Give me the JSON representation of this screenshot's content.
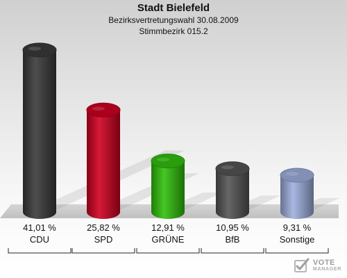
{
  "header": {
    "title": "Stadt Bielefeld",
    "subtitle": "Bezirksvertretungswahl 30.08.2009",
    "precinct": "Stimmbezirk 015.2"
  },
  "chart_data": {
    "type": "bar",
    "categories": [
      "CDU",
      "SPD",
      "GRÜNE",
      "BfB",
      "Sonstige"
    ],
    "values": [
      41.01,
      25.82,
      12.91,
      10.95,
      9.31
    ],
    "value_labels": [
      "41,01 %",
      "25,82 %",
      "12,91 %",
      "10,95 %",
      "9,31 %"
    ],
    "colors": [
      "#3a3a3a",
      "#d10021",
      "#31c10c",
      "#555555",
      "#9fb0df"
    ],
    "title": "Stadt Bielefeld",
    "subtitle": "Bezirksvertretungswahl 30.08.2009",
    "xlabel": "",
    "ylabel": "",
    "ylim": [
      0,
      45
    ],
    "grid": false,
    "legend": "none"
  },
  "logo": {
    "main": "VOTE",
    "sub": "MANAGER",
    "icon": "ballot-check-icon"
  }
}
